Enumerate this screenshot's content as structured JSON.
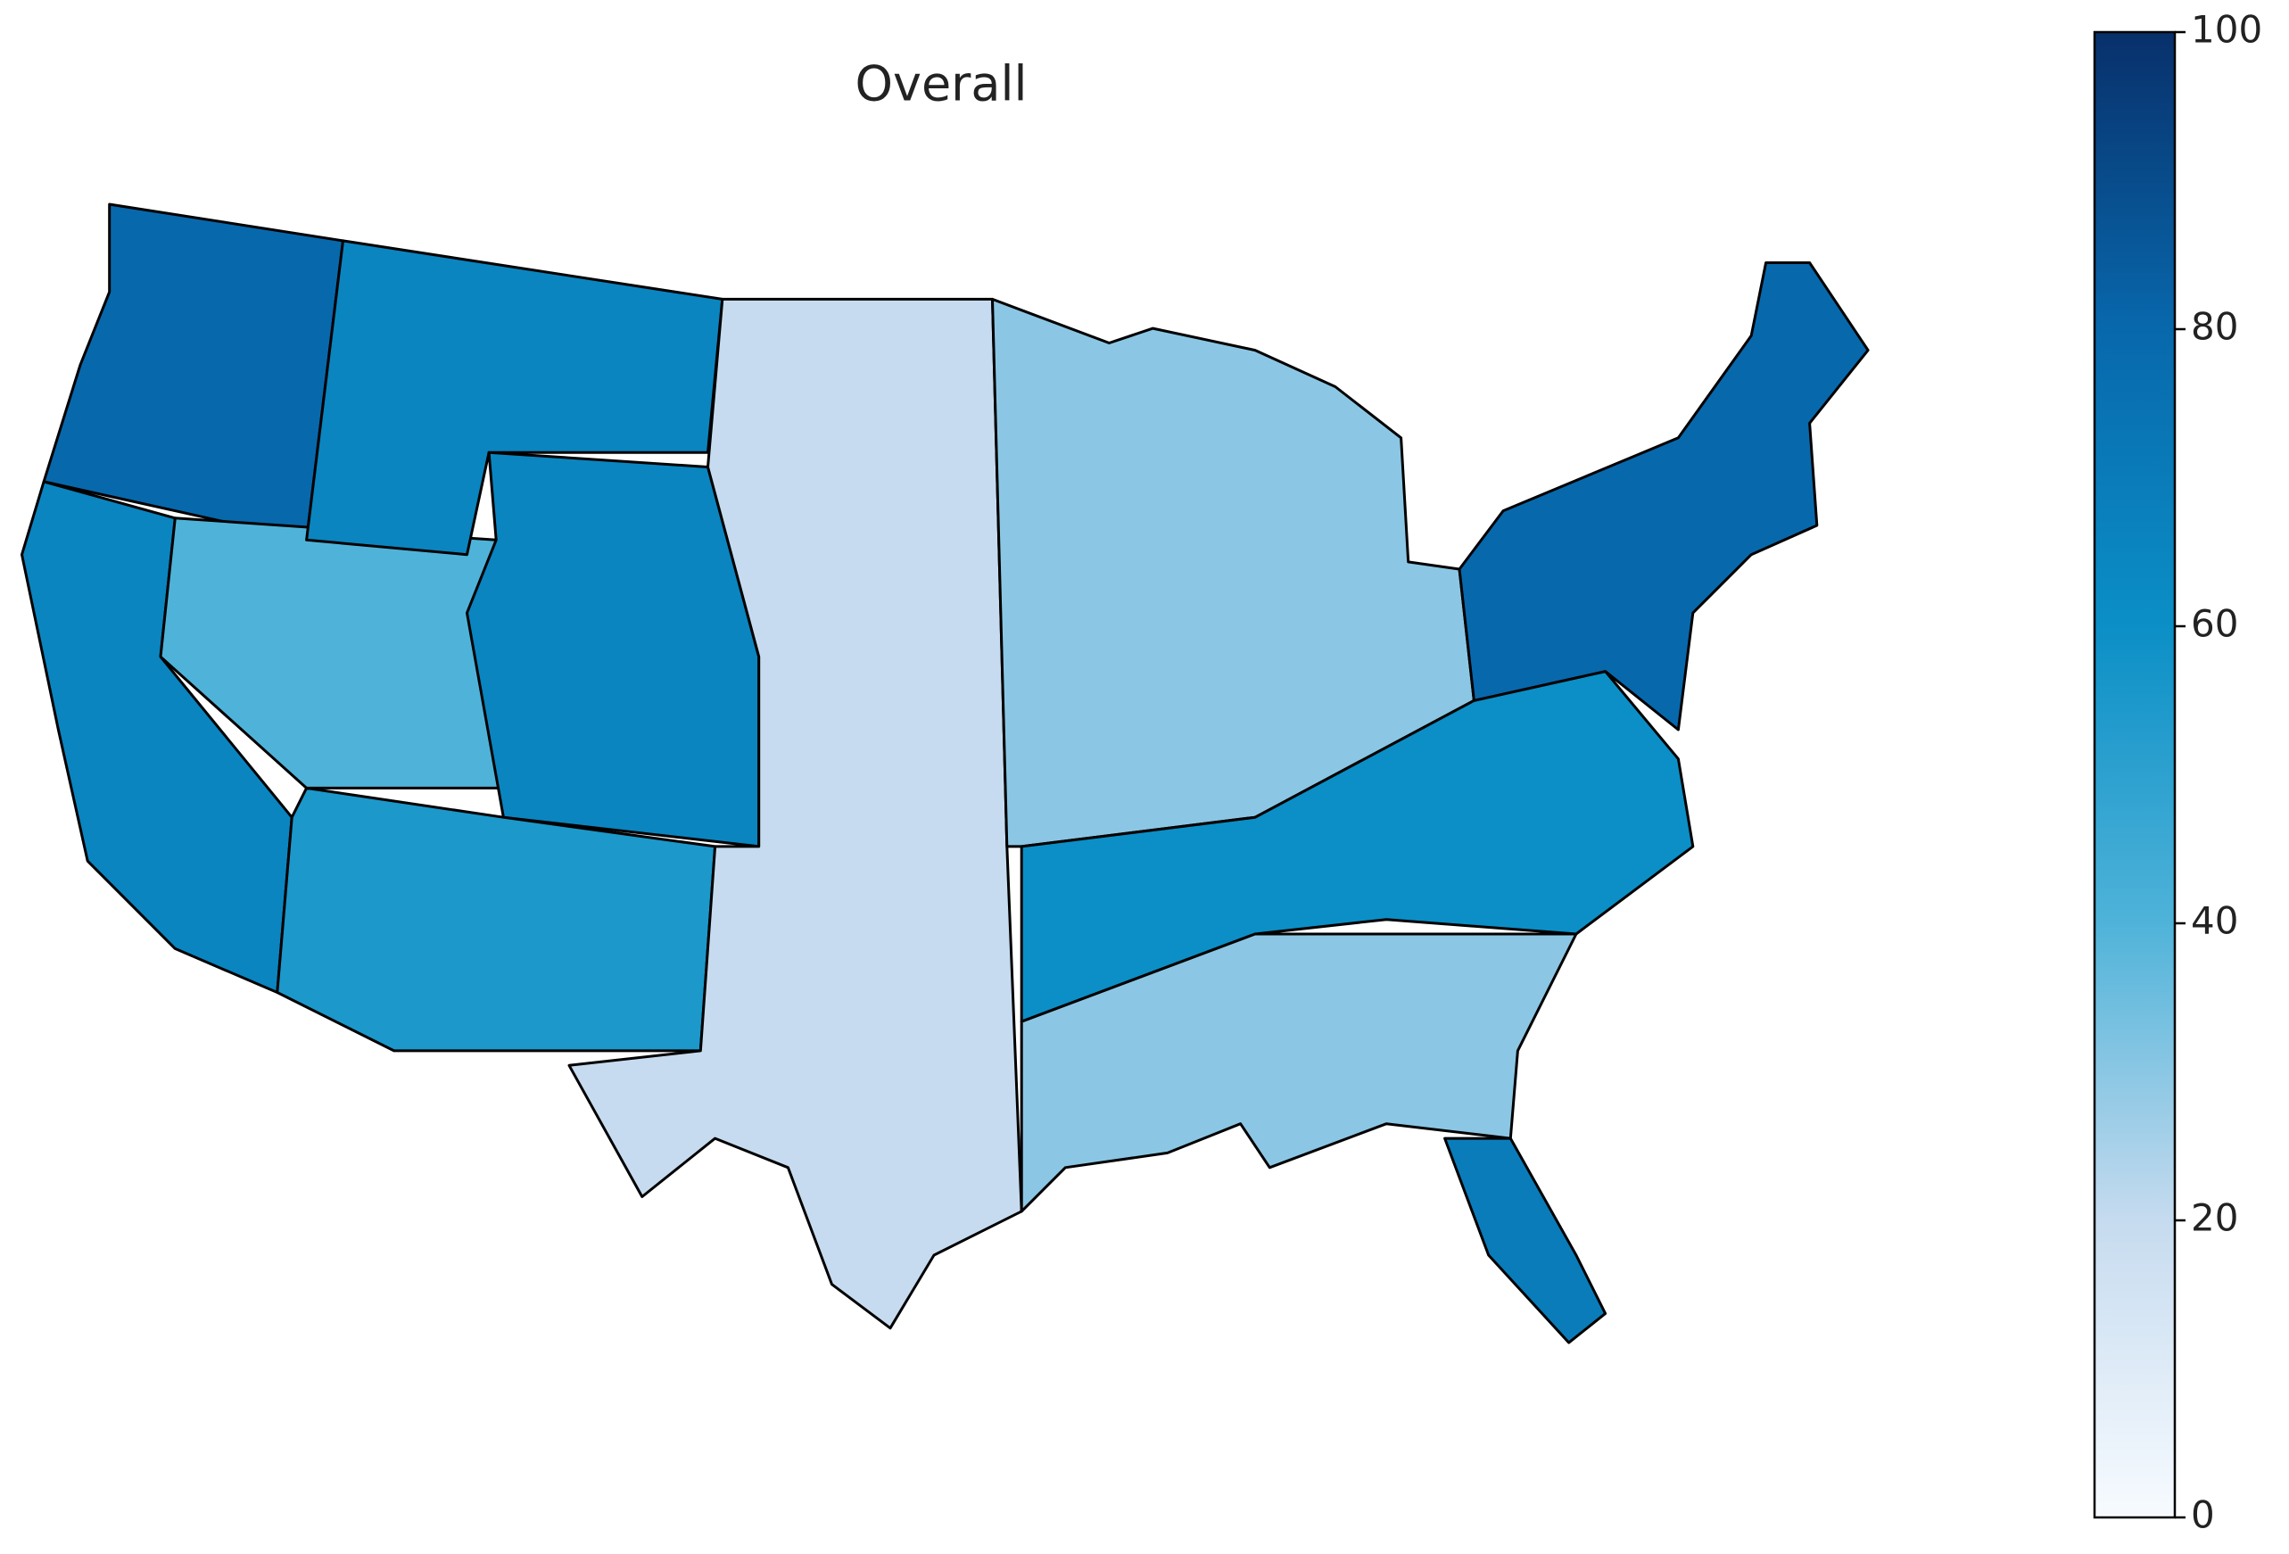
{
  "chart_data": {
    "type": "choropleth",
    "title": "Overall",
    "colorbar_lim": [
      0,
      100
    ],
    "colorbar_ticks": [
      0,
      20,
      40,
      60,
      80,
      100
    ],
    "colormap": [
      "#f7fbff",
      "#c6dbef",
      "#4fb3d9",
      "#0b8fc6",
      "#0868ac",
      "#08306b"
    ],
    "region_values": [
      80,
      65,
      40,
      65,
      65,
      55,
      20,
      30,
      60,
      30,
      80,
      70
    ]
  }
}
